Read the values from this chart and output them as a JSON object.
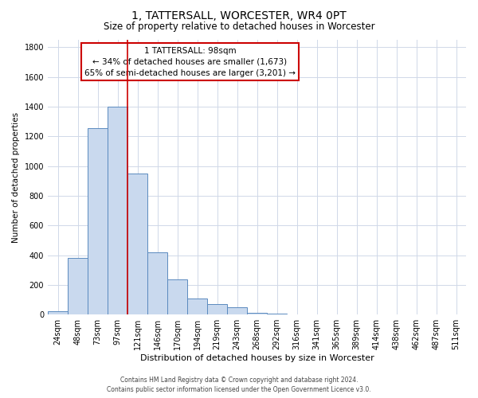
{
  "title": "1, TATTERSALL, WORCESTER, WR4 0PT",
  "subtitle": "Size of property relative to detached houses in Worcester",
  "xlabel": "Distribution of detached houses by size in Worcester",
  "ylabel": "Number of detached properties",
  "bar_color": "#c9d9ee",
  "bar_edge_color": "#5b8abf",
  "bin_labels": [
    "24sqm",
    "48sqm",
    "73sqm",
    "97sqm",
    "121sqm",
    "146sqm",
    "170sqm",
    "194sqm",
    "219sqm",
    "243sqm",
    "268sqm",
    "292sqm",
    "316sqm",
    "341sqm",
    "365sqm",
    "389sqm",
    "414sqm",
    "438sqm",
    "462sqm",
    "487sqm",
    "511sqm"
  ],
  "bar_heights": [
    25,
    380,
    1255,
    1400,
    950,
    420,
    235,
    110,
    70,
    50,
    10,
    5,
    2,
    0,
    0,
    0,
    0,
    0,
    0,
    0,
    0
  ],
  "ylim": [
    0,
    1850
  ],
  "yticks": [
    0,
    200,
    400,
    600,
    800,
    1000,
    1200,
    1400,
    1600,
    1800
  ],
  "vline_bin_index": 3,
  "annotation_title": "1 TATTERSALL: 98sqm",
  "annotation_line1": "← 34% of detached houses are smaller (1,673)",
  "annotation_line2": "65% of semi-detached houses are larger (3,201) →",
  "vline_color": "#cc0000",
  "box_edge_color": "#cc0000",
  "footer_line1": "Contains HM Land Registry data © Crown copyright and database right 2024.",
  "footer_line2": "Contains public sector information licensed under the Open Government Licence v3.0.",
  "background_color": "#ffffff",
  "grid_color": "#d0d8e8"
}
